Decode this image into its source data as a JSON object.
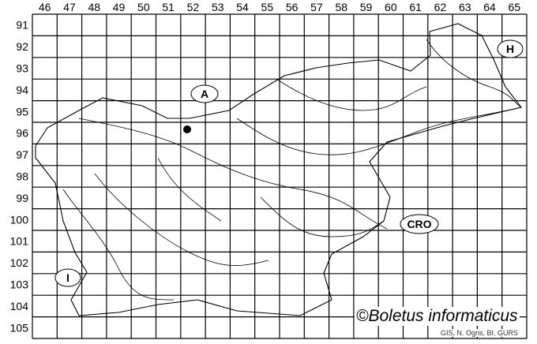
{
  "map": {
    "columns": [
      "46",
      "47",
      "48",
      "49",
      "50",
      "51",
      "52",
      "53",
      "54",
      "55",
      "56",
      "57",
      "58",
      "59",
      "60",
      "61",
      "62",
      "63",
      "64",
      "65"
    ],
    "rows": [
      "91",
      "92",
      "93",
      "94",
      "95",
      "96",
      "97",
      "98",
      "99",
      "100",
      "101",
      "102",
      "103",
      "104",
      "105"
    ],
    "country_labels": {
      "austria": "A",
      "hungary": "H",
      "croatia": "CRO",
      "italy": "I"
    },
    "copyright": "©Boletus informaticus",
    "credit": "GIS, N. Ogris, BI, GURS",
    "record_marker": {
      "column": "51",
      "row": "96"
    }
  }
}
